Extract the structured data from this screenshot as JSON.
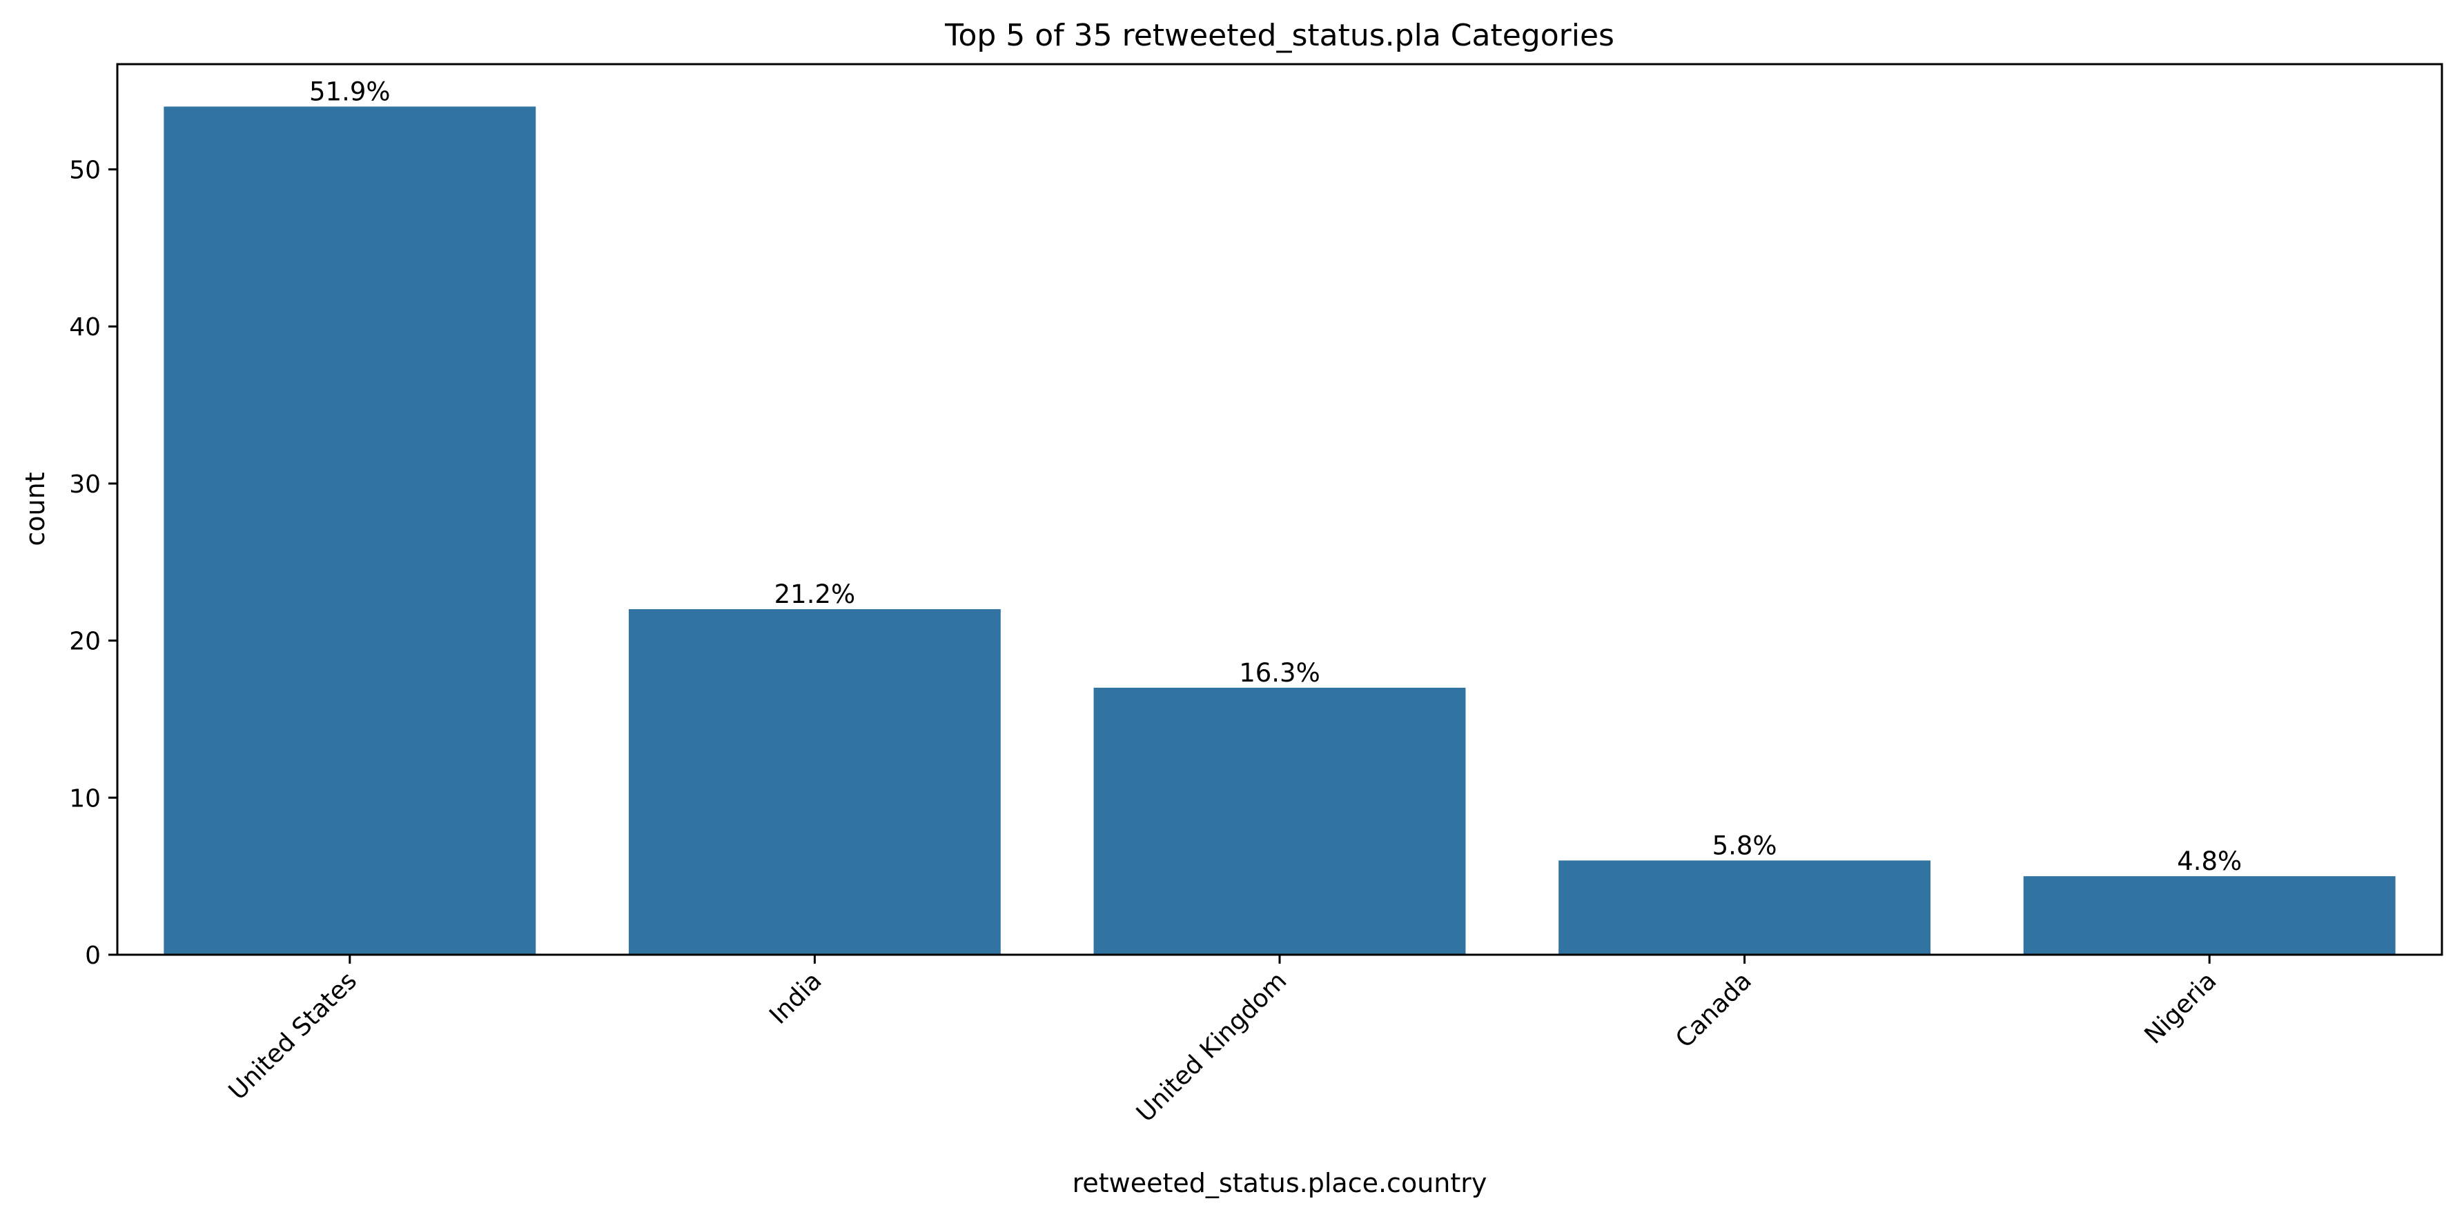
{
  "chart_data": {
    "type": "bar",
    "title": "Top 5 of 35 retweeted_status.pla Categories",
    "xlabel": "retweeted_status.place.country",
    "ylabel": "count",
    "categories": [
      "United States",
      "India",
      "United Kingdom",
      "Canada",
      "Nigeria"
    ],
    "values": [
      54,
      22,
      17,
      6,
      5
    ],
    "data_labels": [
      "51.9%",
      "21.2%",
      "16.3%",
      "5.8%",
      "4.8%"
    ],
    "yticks": [
      0,
      10,
      20,
      30,
      40,
      50
    ],
    "ylim": [
      0,
      56.7
    ],
    "grid": false,
    "legend": "none",
    "bar_color": "#3274a1",
    "x_tick_rotation_deg": -45
  }
}
